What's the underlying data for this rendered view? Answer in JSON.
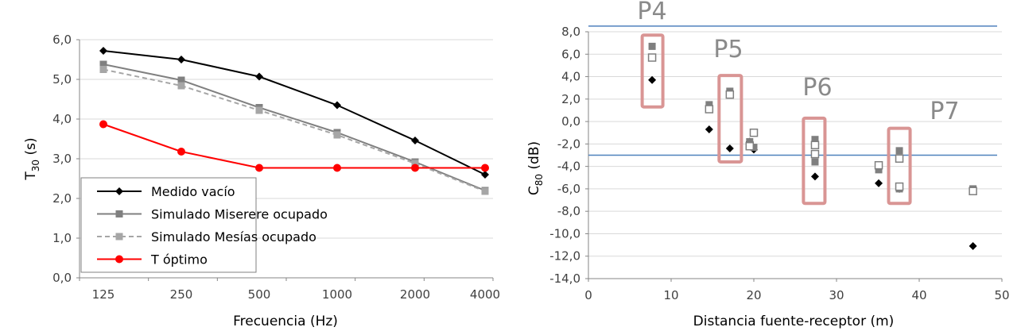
{
  "chart_data": [
    {
      "type": "line",
      "title": "",
      "xlabel": "Frecuencia (Hz)",
      "ylabel_main": "T",
      "ylabel_sub": "30",
      "ylabel_rest": " (s)",
      "categories": [
        "125",
        "250",
        "500",
        "1000",
        "2000",
        "4000"
      ],
      "ylim": [
        0,
        6
      ],
      "yticks": [
        "0,0",
        "1,0",
        "2,0",
        "3,0",
        "4,0",
        "5,0",
        "6,0"
      ],
      "grid": true,
      "legend_position": "bottom-left",
      "series": [
        {
          "name": "Medido vacío",
          "values": [
            5.72,
            5.5,
            5.07,
            4.35,
            3.46,
            2.6
          ],
          "color": "#000000",
          "marker": "diamond",
          "dash": "solid"
        },
        {
          "name": "Simulado Miserere ocupado",
          "values": [
            5.38,
            4.98,
            4.29,
            3.66,
            2.92,
            2.2
          ],
          "color": "#808080",
          "marker": "square",
          "dash": "solid"
        },
        {
          "name": "Simulado Mesías ocupado",
          "values": [
            5.25,
            4.84,
            4.22,
            3.6,
            2.88,
            2.18
          ],
          "color": "#a6a6a6",
          "marker": "square",
          "dash": "dashed"
        },
        {
          "name": "T óptimo",
          "values": [
            3.87,
            3.18,
            2.77,
            2.77,
            2.77,
            2.77
          ],
          "color": "#ff0000",
          "marker": "circle",
          "dash": "solid"
        }
      ]
    },
    {
      "type": "scatter",
      "title": "",
      "xlabel": "Distancia fuente-receptor (m)",
      "ylabel_main": "C",
      "ylabel_sub": "80",
      "ylabel_rest": " (dB)",
      "xlim": [
        0,
        50
      ],
      "ylim": [
        -14,
        8
      ],
      "xticks": [
        "0",
        "10",
        "20",
        "30",
        "40",
        "50"
      ],
      "yticks": [
        "-14,0",
        "-12,0",
        "-10,0",
        "-8,0",
        "-6,0",
        "-4,0",
        "-2,0",
        "0,0",
        "2,0",
        "4,0",
        "6,0",
        "8,0"
      ],
      "grid": true,
      "reference_lines_y": [
        8.5,
        -3.0
      ],
      "reference_line_color": "#4f81bd",
      "series": [
        {
          "marker": "diamond-filled",
          "color": "#000000",
          "points": [
            [
              7.7,
              3.7
            ],
            [
              14.6,
              -0.7
            ],
            [
              17.1,
              -2.4
            ],
            [
              19.5,
              -1.8
            ],
            [
              20.0,
              -2.5
            ],
            [
              27.4,
              -4.9
            ],
            [
              35.1,
              -5.5
            ],
            [
              37.6,
              -6.0
            ],
            [
              46.5,
              -11.1
            ]
          ]
        },
        {
          "marker": "square-filled",
          "color": "#7f7f7f",
          "points": [
            [
              7.7,
              6.7
            ],
            [
              14.6,
              1.5
            ],
            [
              17.1,
              2.7
            ],
            [
              19.5,
              -1.8
            ],
            [
              20.0,
              -2.3
            ],
            [
              27.4,
              -1.6
            ],
            [
              27.4,
              -3.6
            ],
            [
              35.1,
              -4.3
            ],
            [
              37.6,
              -2.6
            ],
            [
              37.6,
              -6.0
            ],
            [
              46.5,
              -6.0
            ]
          ]
        },
        {
          "marker": "square-open",
          "color": "#7f7f7f",
          "points": [
            [
              7.7,
              5.7
            ],
            [
              14.6,
              1.1
            ],
            [
              17.1,
              2.4
            ],
            [
              19.5,
              -2.2
            ],
            [
              20.0,
              -1.0
            ],
            [
              27.4,
              -2.1
            ],
            [
              27.4,
              -2.9
            ],
            [
              35.1,
              -3.9
            ],
            [
              37.6,
              -3.3
            ],
            [
              37.6,
              -5.8
            ],
            [
              46.5,
              -6.2
            ]
          ]
        }
      ],
      "groups": [
        {
          "label": "P4",
          "x_range": [
            6.5,
            9.0
          ],
          "y_range": [
            1.3,
            7.7
          ]
        },
        {
          "label": "P5",
          "x_range": [
            15.8,
            18.5
          ],
          "y_range": [
            -3.6,
            4.1
          ]
        },
        {
          "label": "P6",
          "x_range": [
            26.0,
            28.6
          ],
          "y_range": [
            -7.3,
            0.3
          ]
        },
        {
          "label": "P7",
          "x_range": [
            36.3,
            38.9
          ],
          "y_range": [
            -7.3,
            -0.6
          ]
        }
      ],
      "group_box_color": "#d99594"
    }
  ]
}
